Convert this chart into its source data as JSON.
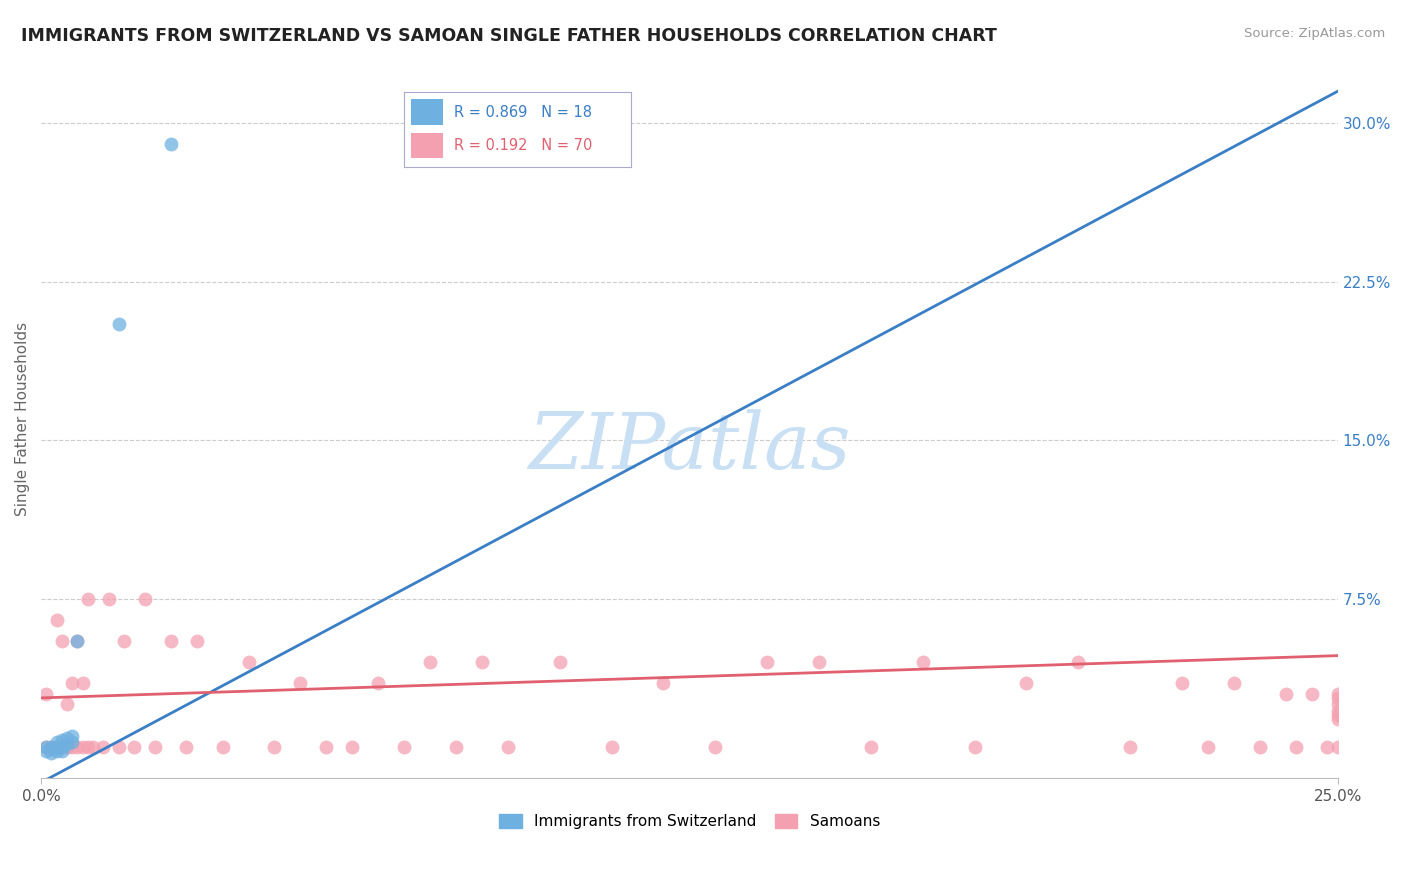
{
  "title": "IMMIGRANTS FROM SWITZERLAND VS SAMOAN SINGLE FATHER HOUSEHOLDS CORRELATION CHART",
  "source": "Source: ZipAtlas.com",
  "ylabel": "Single Father Households",
  "right_yticks": [
    0.0,
    0.075,
    0.15,
    0.225,
    0.3
  ],
  "right_yticklabels": [
    "",
    "7.5%",
    "15.0%",
    "22.5%",
    "30.0%"
  ],
  "xlim": [
    0.0,
    0.25
  ],
  "ylim": [
    -0.01,
    0.33
  ],
  "legend_label1": "Immigrants from Switzerland",
  "legend_label2": "Samoans",
  "R1": 0.869,
  "N1": 18,
  "R2": 0.192,
  "N2": 70,
  "color_blue": "#6EB0E0",
  "color_pink": "#F4A0B0",
  "color_trendline_blue": "#3A7EC6",
  "color_trendline_pink": "#E06070",
  "watermark": "ZIPatlas",
  "watermark_color": "#C8DFF4",
  "blue_trendline": [
    [
      0.0,
      -0.012
    ],
    [
      0.25,
      0.315
    ]
  ],
  "pink_trendline": [
    [
      0.0,
      0.028
    ],
    [
      0.25,
      0.048
    ]
  ],
  "blue_x": [
    0.001,
    0.001,
    0.002,
    0.002,
    0.002,
    0.003,
    0.003,
    0.003,
    0.004,
    0.004,
    0.004,
    0.005,
    0.005,
    0.006,
    0.006,
    0.007,
    0.015,
    0.025
  ],
  "blue_y": [
    0.005,
    0.003,
    0.002,
    0.004,
    0.005,
    0.003,
    0.005,
    0.007,
    0.005,
    0.008,
    0.003,
    0.006,
    0.009,
    0.007,
    0.01,
    0.055,
    0.205,
    0.29
  ],
  "pink_x": [
    0.001,
    0.001,
    0.002,
    0.002,
    0.003,
    0.003,
    0.003,
    0.004,
    0.004,
    0.005,
    0.005,
    0.005,
    0.006,
    0.006,
    0.007,
    0.007,
    0.008,
    0.008,
    0.009,
    0.009,
    0.01,
    0.012,
    0.013,
    0.015,
    0.016,
    0.018,
    0.02,
    0.022,
    0.025,
    0.028,
    0.03,
    0.035,
    0.04,
    0.045,
    0.05,
    0.055,
    0.06,
    0.065,
    0.07,
    0.075,
    0.08,
    0.085,
    0.09,
    0.1,
    0.11,
    0.12,
    0.13,
    0.14,
    0.15,
    0.16,
    0.17,
    0.18,
    0.19,
    0.2,
    0.21,
    0.22,
    0.225,
    0.23,
    0.235,
    0.24,
    0.242,
    0.245,
    0.248,
    0.25,
    0.25,
    0.25,
    0.25,
    0.25,
    0.25,
    0.25
  ],
  "pink_y": [
    0.005,
    0.03,
    0.005,
    0.005,
    0.005,
    0.065,
    0.005,
    0.005,
    0.055,
    0.005,
    0.005,
    0.025,
    0.005,
    0.035,
    0.005,
    0.055,
    0.005,
    0.035,
    0.005,
    0.075,
    0.005,
    0.005,
    0.075,
    0.005,
    0.055,
    0.005,
    0.075,
    0.005,
    0.055,
    0.005,
    0.055,
    0.005,
    0.045,
    0.005,
    0.035,
    0.005,
    0.005,
    0.035,
    0.005,
    0.045,
    0.005,
    0.045,
    0.005,
    0.045,
    0.005,
    0.035,
    0.005,
    0.045,
    0.045,
    0.005,
    0.045,
    0.005,
    0.035,
    0.045,
    0.005,
    0.035,
    0.005,
    0.035,
    0.005,
    0.03,
    0.005,
    0.03,
    0.005,
    0.03,
    0.005,
    0.028,
    0.025,
    0.022,
    0.02,
    0.018
  ]
}
